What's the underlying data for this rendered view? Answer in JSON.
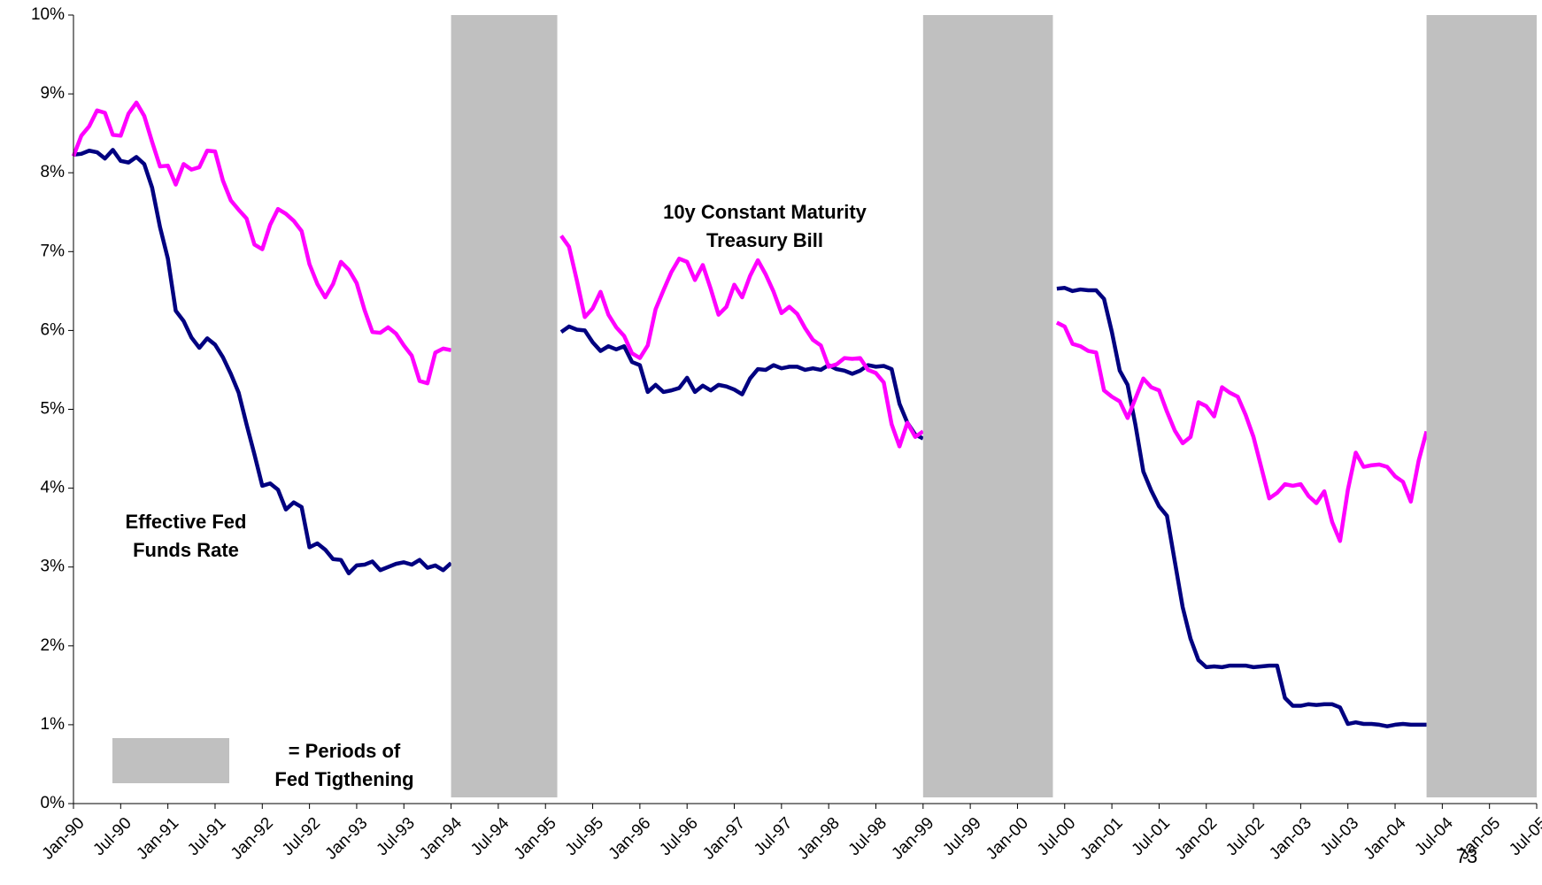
{
  "chart_data": {
    "type": "line",
    "x": [
      "Jan-90",
      null,
      null,
      null,
      null,
      null,
      "Jul-90",
      null,
      null,
      null,
      null,
      null,
      "Jan-91",
      null,
      null,
      null,
      null,
      null,
      "Jul-91",
      null,
      null,
      null,
      null,
      null,
      "Jan-92",
      null,
      null,
      null,
      null,
      null,
      "Jul-92",
      null,
      null,
      null,
      null,
      null,
      "Jan-93",
      null,
      null,
      null,
      null,
      null,
      "Jul-93",
      null,
      null,
      null,
      null,
      null,
      "Jan-94",
      null,
      null,
      null,
      null,
      null,
      "Jul-94",
      null,
      null,
      null,
      null,
      null,
      "Jan-95",
      null,
      null,
      null,
      null,
      null,
      "Jul-95",
      null,
      null,
      null,
      null,
      null,
      "Jan-96",
      null,
      null,
      null,
      null,
      null,
      "Jul-96",
      null,
      null,
      null,
      null,
      null,
      "Jan-97",
      null,
      null,
      null,
      null,
      null,
      "Jul-97",
      null,
      null,
      null,
      null,
      null,
      "Jan-98",
      null,
      null,
      null,
      null,
      null,
      "Jul-98",
      null,
      null,
      null,
      null,
      null,
      "Jan-99",
      null,
      null,
      null,
      null,
      null,
      "Jul-99",
      null,
      null,
      null,
      null,
      null,
      "Jan-00",
      null,
      null,
      null,
      null,
      null,
      "Jul-00",
      null,
      null,
      null,
      null,
      null,
      "Jan-01",
      null,
      null,
      null,
      null,
      null,
      "Jul-01",
      null,
      null,
      null,
      null,
      null,
      "Jan-02",
      null,
      null,
      null,
      null,
      null,
      "Jul-02",
      null,
      null,
      null,
      null,
      null,
      "Jan-03",
      null,
      null,
      null,
      null,
      null,
      "Jul-03",
      null,
      null,
      null,
      null,
      null,
      "Jan-04",
      null,
      null,
      null,
      null,
      null,
      "Jul-04",
      null,
      null,
      null,
      null,
      null,
      "Jan-05",
      null,
      null,
      null,
      null,
      null,
      "Jul-05"
    ],
    "series": [
      {
        "name": "Effective Fed Funds Rate",
        "color": "#000080",
        "values": [
          8.23,
          8.24,
          8.28,
          8.26,
          8.18,
          8.29,
          8.15,
          8.13,
          8.2,
          8.11,
          7.81,
          7.31,
          6.91,
          6.25,
          6.12,
          5.91,
          5.78,
          5.9,
          5.82,
          5.66,
          5.45,
          5.21,
          4.81,
          4.43,
          4.03,
          4.06,
          3.98,
          3.73,
          3.82,
          3.76,
          3.25,
          3.3,
          3.22,
          3.1,
          3.09,
          2.92,
          3.02,
          3.03,
          3.07,
          2.96,
          3.0,
          3.04,
          3.06,
          3.03,
          3.09,
          2.99,
          3.02,
          2.96,
          3.05,
          null,
          null,
          null,
          null,
          null,
          null,
          null,
          null,
          null,
          null,
          null,
          null,
          null,
          5.98,
          6.05,
          6.01,
          6.0,
          5.85,
          5.74,
          5.8,
          5.76,
          5.8,
          5.6,
          5.56,
          5.22,
          5.31,
          5.22,
          5.24,
          5.27,
          5.4,
          5.22,
          5.3,
          5.24,
          5.31,
          5.29,
          5.25,
          5.19,
          5.39,
          5.51,
          5.5,
          5.56,
          5.52,
          5.54,
          5.54,
          5.5,
          5.52,
          5.5,
          5.56,
          5.51,
          5.49,
          5.45,
          5.49,
          5.56,
          5.54,
          5.55,
          5.51,
          5.07,
          4.83,
          4.68,
          4.63,
          null,
          null,
          null,
          null,
          null,
          null,
          null,
          null,
          null,
          null,
          null,
          null,
          null,
          null,
          null,
          null,
          6.53,
          6.54,
          6.5,
          6.52,
          6.51,
          6.51,
          6.4,
          5.98,
          5.49,
          5.31,
          4.8,
          4.21,
          3.97,
          3.77,
          3.65,
          3.07,
          2.49,
          2.09,
          1.82,
          1.73,
          1.74,
          1.73,
          1.75,
          1.75,
          1.75,
          1.73,
          1.74,
          1.75,
          1.75,
          1.34,
          1.24,
          1.24,
          1.26,
          1.25,
          1.26,
          1.26,
          1.22,
          1.01,
          1.03,
          1.01,
          1.01,
          1.0,
          0.98,
          1.0,
          1.01,
          1.0,
          1.0,
          1.0,
          null,
          null,
          null,
          null,
          null,
          null,
          null,
          null,
          null,
          null,
          null,
          null,
          null,
          null
        ]
      },
      {
        "name": "10y Constant Maturity Treasury Bill",
        "color": "#ff00ff",
        "values": [
          8.21,
          8.47,
          8.59,
          8.79,
          8.76,
          8.48,
          8.47,
          8.75,
          8.89,
          8.72,
          8.39,
          8.08,
          8.09,
          7.85,
          8.11,
          8.04,
          8.07,
          8.28,
          8.27,
          7.9,
          7.65,
          7.53,
          7.42,
          7.09,
          7.03,
          7.34,
          7.54,
          7.48,
          7.39,
          7.26,
          6.84,
          6.59,
          6.42,
          6.59,
          6.87,
          6.77,
          6.6,
          6.26,
          5.98,
          5.97,
          6.04,
          5.96,
          5.81,
          5.68,
          5.36,
          5.33,
          5.72,
          5.77,
          5.75,
          null,
          null,
          null,
          null,
          null,
          null,
          null,
          null,
          null,
          null,
          null,
          null,
          null,
          7.2,
          7.06,
          6.63,
          6.17,
          6.28,
          6.49,
          6.2,
          6.04,
          5.93,
          5.71,
          5.65,
          5.81,
          6.27,
          6.51,
          6.74,
          6.91,
          6.87,
          6.64,
          6.83,
          6.53,
          6.2,
          6.3,
          6.58,
          6.42,
          6.69,
          6.89,
          6.71,
          6.49,
          6.22,
          6.3,
          6.21,
          6.03,
          5.88,
          5.81,
          5.54,
          5.57,
          5.65,
          5.64,
          5.65,
          5.5,
          5.46,
          5.34,
          4.81,
          4.53,
          4.83,
          4.65,
          4.72,
          null,
          null,
          null,
          null,
          null,
          null,
          null,
          null,
          null,
          null,
          null,
          null,
          null,
          null,
          null,
          null,
          6.1,
          6.05,
          5.83,
          5.8,
          5.74,
          5.72,
          5.24,
          5.16,
          5.1,
          4.89,
          5.14,
          5.39,
          5.28,
          5.24,
          4.97,
          4.73,
          4.57,
          4.65,
          5.09,
          5.04,
          4.91,
          5.28,
          5.21,
          5.16,
          4.93,
          4.65,
          4.26,
          3.87,
          3.94,
          4.05,
          4.03,
          4.05,
          3.9,
          3.81,
          3.96,
          3.57,
          3.33,
          3.98,
          4.45,
          4.27,
          4.29,
          4.3,
          4.27,
          4.15,
          4.08,
          3.83,
          4.35,
          4.72,
          null,
          null,
          null,
          null,
          null,
          null,
          null,
          null,
          null,
          null,
          null,
          null,
          null,
          null
        ]
      }
    ],
    "ylim": [
      0,
      10
    ],
    "yticks": [
      {
        "value": 0,
        "label": "0%"
      },
      {
        "value": 1,
        "label": "1%"
      },
      {
        "value": 2,
        "label": "2%"
      },
      {
        "value": 3,
        "label": "3%"
      },
      {
        "value": 4,
        "label": "4%"
      },
      {
        "value": 5,
        "label": "5%"
      },
      {
        "value": 6,
        "label": "6%"
      },
      {
        "value": 7,
        "label": "7%"
      },
      {
        "value": 8,
        "label": "8%"
      },
      {
        "value": 9,
        "label": "9%"
      },
      {
        "value": 10,
        "label": "10%"
      }
    ],
    "grid": false,
    "shaded_periods": [
      {
        "start": 48,
        "end": 61.5
      },
      {
        "start": 108,
        "end": 124.5
      },
      {
        "start": 172,
        "end": 186
      }
    ],
    "shade_color": "#c0c0c0",
    "legend": {
      "lines": [
        "= Periods of",
        "Fed Tigthening"
      ]
    },
    "annotations": [
      {
        "lines": [
          "10y Constant Maturity",
          "Treasury Bill"
        ]
      },
      {
        "lines": [
          "Effective Fed",
          "Funds Rate"
        ]
      }
    ]
  },
  "page_number": "73"
}
